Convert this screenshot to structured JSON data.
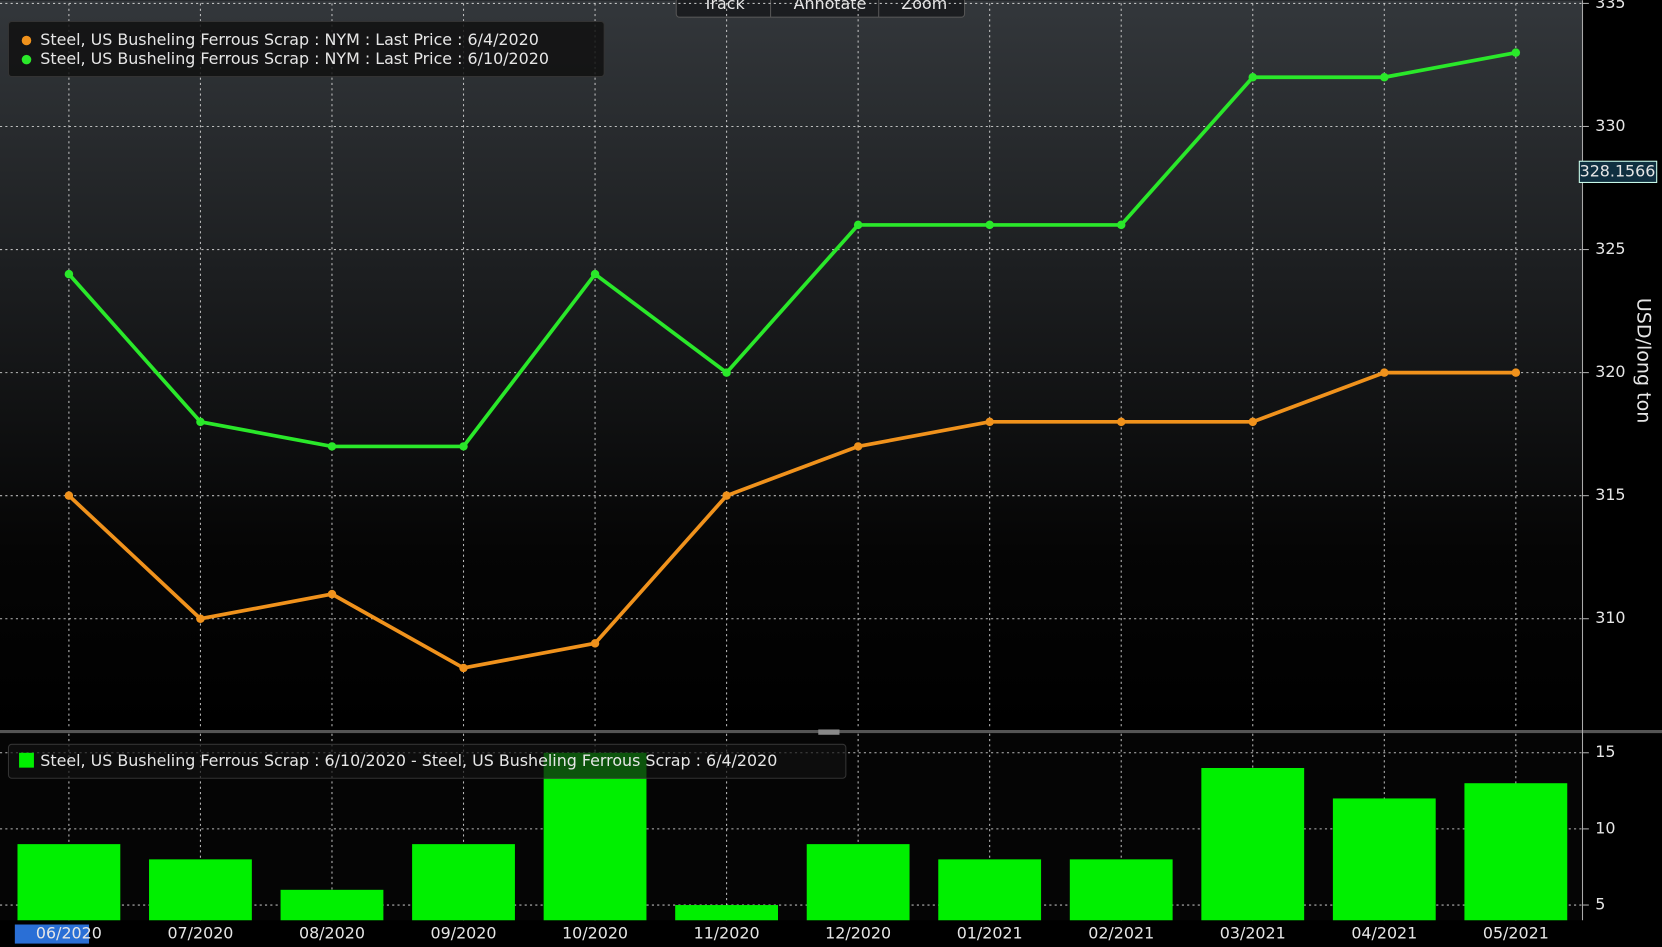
{
  "toolbar": [
    "Track",
    "Annotate",
    "Zoom"
  ],
  "chart_data": [
    {
      "type": "line",
      "categories": [
        "06/2020",
        "07/2020",
        "08/2020",
        "09/2020",
        "10/2020",
        "11/2020",
        "12/2020",
        "01/2021",
        "02/2021",
        "03/2021",
        "04/2021",
        "05/2021"
      ],
      "series": [
        {
          "name": "Steel, US Busheling Ferrous Scrap : NYM : Last Price : 6/4/2020",
          "color": "#f0921c",
          "values": [
            315,
            310,
            311,
            308,
            309,
            315,
            317,
            318,
            318,
            318,
            320,
            320
          ]
        },
        {
          "name": "Steel, US Busheling Ferrous Scrap : NYM : Last Price : 6/10/2020",
          "color": "#2ae82a",
          "values": [
            324,
            318,
            317,
            317,
            324,
            320,
            326,
            326,
            326,
            332,
            332,
            333
          ]
        }
      ],
      "ylim": [
        305.5,
        335
      ],
      "yticks": [
        310,
        315,
        320,
        325,
        330,
        335
      ],
      "y_axis_label": "USD/long ton",
      "last_price_marker": 328.1566,
      "grid": true
    },
    {
      "type": "bar",
      "series": [
        {
          "name": "Steel, US Busheling Ferrous Scrap : 6/10/2020 - Steel, US Busheling Ferrous Scrap : 6/4/2020",
          "color": "#00f000",
          "values": [
            9,
            8,
            6,
            9,
            15,
            5,
            9,
            8,
            8,
            14,
            12,
            13
          ]
        }
      ],
      "ylim": [
        4,
        16.25
      ],
      "yticks": [
        5,
        10,
        15
      ],
      "grid": true
    }
  ]
}
